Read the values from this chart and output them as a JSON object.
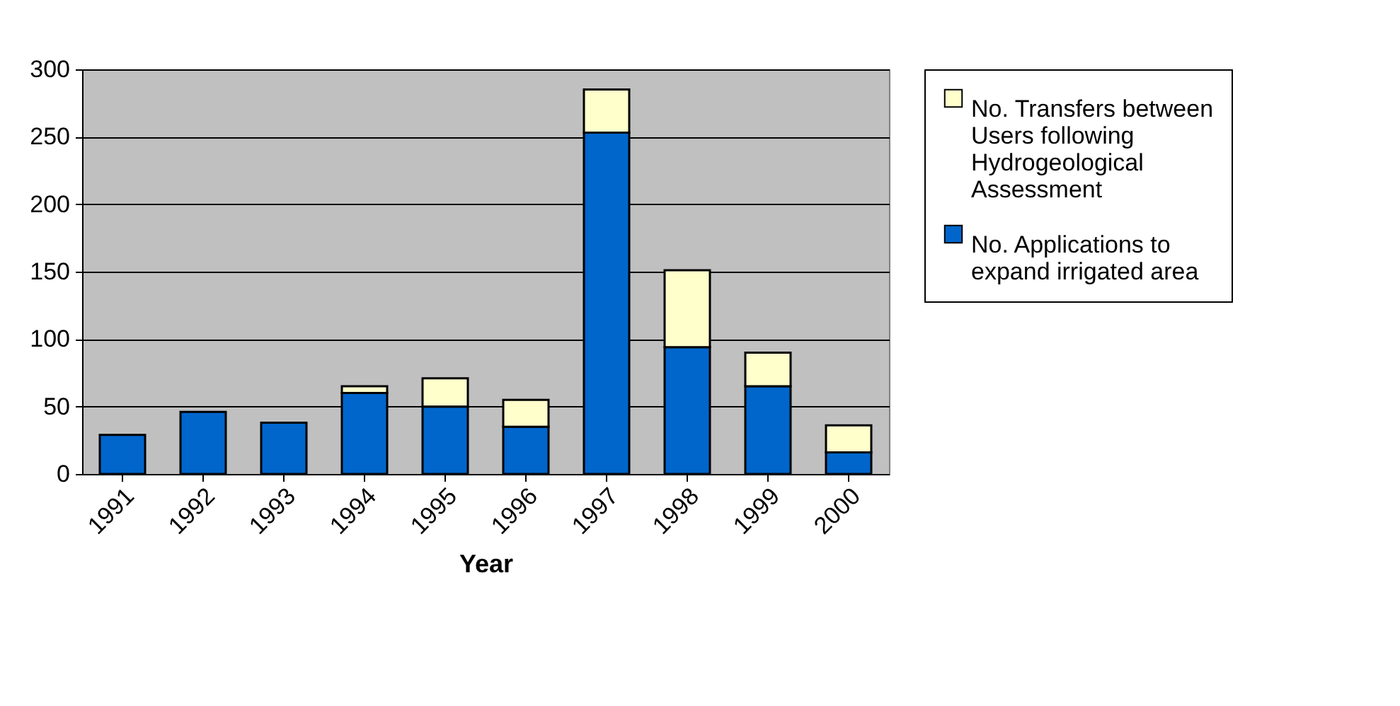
{
  "chart_data": {
    "type": "bar",
    "xlabel": "Year",
    "stacked": true,
    "categories": [
      "1991",
      "1992",
      "1993",
      "1994",
      "1995",
      "1996",
      "1997",
      "1998",
      "1999",
      "2000"
    ],
    "series": [
      {
        "name": "No. Applications to expand irrigated area",
        "color": "#0066cc",
        "values": [
          29,
          46,
          38,
          60,
          50,
          35,
          253,
          94,
          65,
          16
        ]
      },
      {
        "name": "No. Transfers between Users following Hydrogeological Assessment",
        "color": "#ffffcc",
        "values": [
          0,
          0,
          0,
          5,
          21,
          20,
          32,
          57,
          25,
          20
        ]
      }
    ],
    "ylim": [
      0,
      300
    ],
    "yticks": [
      0,
      50,
      100,
      150,
      200,
      250,
      300
    ],
    "grid": "y",
    "legend": "right"
  }
}
